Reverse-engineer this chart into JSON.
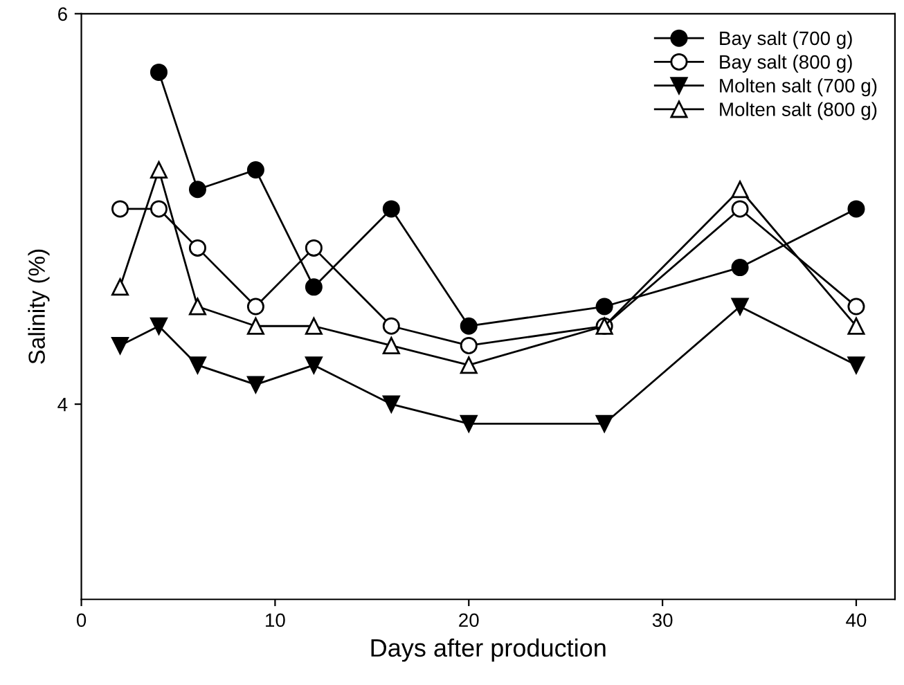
{
  "chart_data": {
    "type": "line",
    "xlabel": "Days after production",
    "ylabel": "Salinity (%)",
    "xlim": [
      0,
      42
    ],
    "xticks": [
      0,
      10,
      20,
      30,
      40
    ],
    "ylim": [
      3,
      6
    ],
    "yticks": [
      4,
      6
    ],
    "grid": false,
    "legend": "top right",
    "line_style": "solid",
    "series": [
      {
        "name": "Bay salt (700 g)",
        "color": "#000000",
        "marker": "circle",
        "x": [
          4,
          6,
          9,
          12,
          16,
          20,
          27,
          34,
          40
        ],
        "values": [
          5.7,
          5.1,
          5.2,
          4.6,
          5.0,
          4.4,
          4.5,
          4.7,
          5.0
        ]
      },
      {
        "name": "Bay salt (800 g)",
        "color": "#ffffff",
        "marker": "circle",
        "x": [
          2,
          4,
          6,
          9,
          12,
          16,
          20,
          27,
          34,
          40
        ],
        "values": [
          5.0,
          5.0,
          4.8,
          4.5,
          4.8,
          4.4,
          4.3,
          4.4,
          5.0,
          4.5
        ]
      },
      {
        "name": "Molten salt (700 g)",
        "color": "#000000",
        "marker": "triangle_down",
        "x": [
          2,
          4,
          6,
          9,
          12,
          16,
          20,
          27,
          34,
          40
        ],
        "values": [
          4.3,
          4.4,
          4.2,
          4.1,
          4.2,
          4.0,
          3.9,
          3.9,
          4.5,
          4.2
        ]
      },
      {
        "name": "Molten salt (800 g)",
        "color": "#ffffff",
        "marker": "triangle",
        "x": [
          2,
          4,
          6,
          9,
          12,
          16,
          20,
          27,
          34,
          40
        ],
        "values": [
          4.6,
          5.2,
          4.5,
          4.4,
          4.4,
          4.3,
          4.2,
          4.4,
          5.1,
          4.4
        ]
      }
    ]
  }
}
